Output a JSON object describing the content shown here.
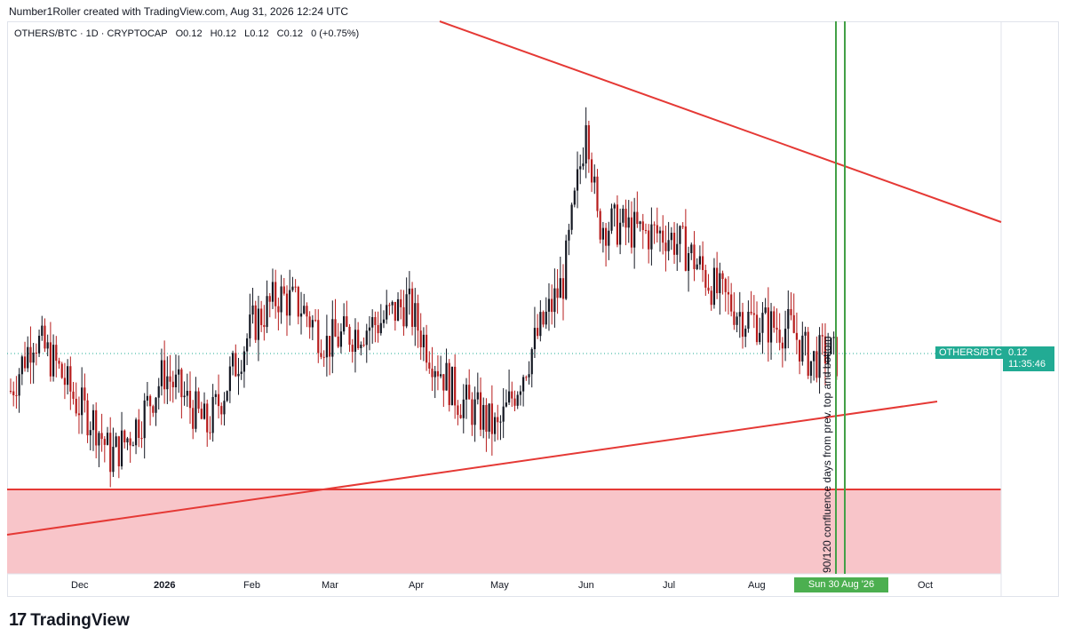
{
  "header": {
    "credit": "Number1Roller created with TradingView.com, Aug 31, 2026 12:24 UTC"
  },
  "legend": {
    "symbol": "OTHERS/BTC · 1D · CRYPTOCAP",
    "open": "O0.12",
    "high": "H0.12",
    "low": "L0.12",
    "close": "C0.12",
    "change": "0 (+0.75%)"
  },
  "price_label": {
    "symbol": "OTHERS/BTC",
    "price": "0.12",
    "countdown": "11:35:46"
  },
  "cursor_date": "Sun 30 Aug '26",
  "annotation": "90/120 confluence days from prev. top and bottom",
  "brand": {
    "name": "TradingView"
  },
  "colors": {
    "up": "#131722",
    "down": "#b71c1c",
    "trendline": "#e53935",
    "zone_fill": "#f8c5c9",
    "vertical_lines": "#43a047",
    "price_accent": "#22ab94"
  },
  "chart_data": {
    "type": "candlestick",
    "title": "",
    "x_axis_ticks": [
      "Dec",
      "2026",
      "Feb",
      "Mar",
      "Apr",
      "May",
      "Jun",
      "Jul",
      "Aug",
      "Oct"
    ],
    "series": [
      {
        "name": "OTHERS/BTC",
        "close_points": [
          {
            "x": "2025-11-12",
            "y": 0.1195
          },
          {
            "x": "2025-11-20",
            "y": 0.121
          },
          {
            "x": "2025-11-28",
            "y": 0.1202
          },
          {
            "x": "2025-12-05",
            "y": 0.1192
          },
          {
            "x": "2025-12-12",
            "y": 0.1186
          },
          {
            "x": "2025-12-17",
            "y": 0.1177
          },
          {
            "x": "2025-12-22",
            "y": 0.1181
          },
          {
            "x": "2025-12-28",
            "y": 0.1188
          },
          {
            "x": "2026-01-05",
            "y": 0.12
          },
          {
            "x": "2026-01-12",
            "y": 0.1193
          },
          {
            "x": "2026-01-20",
            "y": 0.1185
          },
          {
            "x": "2026-01-27",
            "y": 0.1197
          },
          {
            "x": "2026-02-05",
            "y": 0.1213
          },
          {
            "x": "2026-02-14",
            "y": 0.1221
          },
          {
            "x": "2026-02-22",
            "y": 0.1218
          },
          {
            "x": "2026-03-03",
            "y": 0.1208
          },
          {
            "x": "2026-03-12",
            "y": 0.1211
          },
          {
            "x": "2026-03-22",
            "y": 0.1214
          },
          {
            "x": "2026-03-31",
            "y": 0.1219
          },
          {
            "x": "2026-04-08",
            "y": 0.1206
          },
          {
            "x": "2026-04-18",
            "y": 0.1193
          },
          {
            "x": "2026-04-25",
            "y": 0.1189
          },
          {
            "x": "2026-05-02",
            "y": 0.1184
          },
          {
            "x": "2026-05-09",
            "y": 0.1197
          },
          {
            "x": "2026-05-16",
            "y": 0.121
          },
          {
            "x": "2026-05-25",
            "y": 0.1225
          },
          {
            "x": "2026-06-01",
            "y": 0.1262
          },
          {
            "x": "2026-06-02",
            "y": 0.1272
          },
          {
            "x": "2026-06-06",
            "y": 0.1241
          },
          {
            "x": "2026-06-14",
            "y": 0.124
          },
          {
            "x": "2026-06-22",
            "y": 0.1238
          },
          {
            "x": "2026-06-30",
            "y": 0.1238
          },
          {
            "x": "2026-07-08",
            "y": 0.1233
          },
          {
            "x": "2026-07-18",
            "y": 0.1222
          },
          {
            "x": "2026-07-28",
            "y": 0.1215
          },
          {
            "x": "2026-08-05",
            "y": 0.1213
          },
          {
            "x": "2026-08-13",
            "y": 0.1212
          },
          {
            "x": "2026-08-20",
            "y": 0.1203
          },
          {
            "x": "2026-08-26",
            "y": 0.1206
          },
          {
            "x": "2026-08-30",
            "y": 0.1203
          }
        ]
      }
    ],
    "trendlines": [
      {
        "name": "upper",
        "from": {
          "x": "2026-04-30",
          "y": 0.1296
        },
        "to": {
          "x": "2026-10-18",
          "y": 0.1235
        }
      },
      {
        "name": "lower",
        "from": {
          "x": "2025-11-12",
          "y": 0.1158
        },
        "to": {
          "x": "2026-10-12",
          "y": 0.1194
        }
      }
    ],
    "support_zone": {
      "top": 0.1171,
      "bottom": 0.1145
    },
    "vertical_lines": [
      "2026-08-27",
      "2026-08-30"
    ]
  }
}
